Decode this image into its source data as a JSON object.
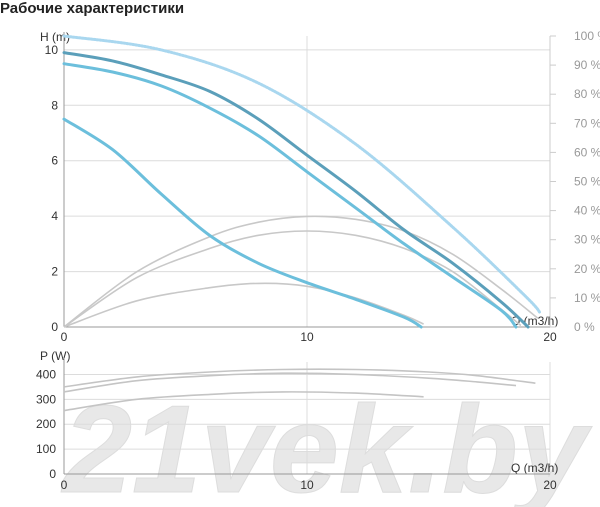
{
  "title": "Рабочие характеристики",
  "watermark": "21vek.by",
  "colors": {
    "dark_curve": "#5b9fba",
    "light_curve": "#6cbfdc",
    "dotted_curve": "#a9d7ef",
    "eff_curve": "#c8c8c8",
    "power_curve": "#c4c4c4",
    "grid": "#dcdcdc",
    "axis_text": "#333333",
    "right_axis_text": "#999999",
    "watermark": "#e8e8e8"
  },
  "chart_data": [
    {
      "type": "line",
      "ylabel": "H (m)",
      "xlabel": "Q (m3/h)",
      "xlim": [
        0,
        20
      ],
      "ylim": [
        0,
        10.5
      ],
      "x_ticks": [
        "0",
        "10",
        "20"
      ],
      "y_ticks": [
        "0",
        "2",
        "4",
        "6",
        "8",
        "10"
      ],
      "y_right_lim": [
        0,
        100
      ],
      "y_right_ticks": [
        "0 %",
        "10 %",
        "20 %",
        "30 %",
        "40 %",
        "50 %",
        "60 %",
        "70 %",
        "80 %",
        "90 %",
        "100 %"
      ],
      "grid": true,
      "head_curves": [
        {
          "style": "dark",
          "points": [
            [
              0,
              9.9
            ],
            [
              2,
              9.6
            ],
            [
              4,
              9.1
            ],
            [
              6,
              8.5
            ],
            [
              8,
              7.5
            ],
            [
              10,
              6.2
            ],
            [
              12,
              4.9
            ],
            [
              14,
              3.5
            ],
            [
              16,
              2.3
            ],
            [
              18,
              0.9
            ],
            [
              19.1,
              0
            ]
          ]
        },
        {
          "style": "light",
          "points": [
            [
              0,
              9.5
            ],
            [
              2,
              9.2
            ],
            [
              4,
              8.7
            ],
            [
              6,
              7.9
            ],
            [
              8,
              6.9
            ],
            [
              10,
              5.6
            ],
            [
              12,
              4.3
            ],
            [
              14,
              3.0
            ],
            [
              16,
              1.8
            ],
            [
              18,
              0.6
            ],
            [
              18.6,
              0
            ]
          ]
        },
        {
          "style": "light",
          "points": [
            [
              0,
              7.5
            ],
            [
              2,
              6.4
            ],
            [
              4,
              4.8
            ],
            [
              6,
              3.3
            ],
            [
              8,
              2.3
            ],
            [
              10,
              1.6
            ],
            [
              12,
              1.0
            ],
            [
              14,
              0.35
            ],
            [
              14.7,
              0
            ]
          ]
        },
        {
          "style": "dotted",
          "points": [
            [
              0,
              10.5
            ],
            [
              4,
              10.0
            ],
            [
              8,
              8.8
            ],
            [
              12,
              6.6
            ],
            [
              16,
              3.6
            ],
            [
              19,
              1.1
            ],
            [
              19.6,
              0.5
            ]
          ]
        }
      ],
      "efficiency_curves": [
        {
          "points": [
            [
              0,
              0
            ],
            [
              3,
              19
            ],
            [
              6,
              31
            ],
            [
              8,
              36
            ],
            [
              10,
              38
            ],
            [
              12,
              37
            ],
            [
              14,
              33
            ],
            [
              16,
              25
            ],
            [
              18,
              13
            ],
            [
              19.5,
              3
            ]
          ]
        },
        {
          "points": [
            [
              0,
              0
            ],
            [
              3,
              17
            ],
            [
              6,
              27
            ],
            [
              8,
              31.5
            ],
            [
              10,
              33
            ],
            [
              12,
              31.5
            ],
            [
              14,
              27
            ],
            [
              16,
              19
            ],
            [
              18,
              6
            ],
            [
              18.8,
              0.5
            ]
          ]
        },
        {
          "points": [
            [
              0,
              0
            ],
            [
              3,
              9
            ],
            [
              6,
              13.5
            ],
            [
              8,
              15
            ],
            [
              10,
              14
            ],
            [
              12,
              10
            ],
            [
              14,
              4
            ],
            [
              14.8,
              1
            ]
          ]
        }
      ]
    },
    {
      "type": "line",
      "ylabel": "P (W)",
      "xlabel": "Q (m3/h)",
      "xlim": [
        0,
        20
      ],
      "ylim": [
        0,
        450
      ],
      "x_ticks": [
        "0",
        "10",
        "20"
      ],
      "y_ticks": [
        "0",
        "100",
        "200",
        "300",
        "400"
      ],
      "grid": true,
      "power_curves": [
        {
          "points": [
            [
              0,
              350
            ],
            [
              3,
              390
            ],
            [
              6,
              410
            ],
            [
              9,
              420
            ],
            [
              12,
              420
            ],
            [
              15,
              410
            ],
            [
              17,
              395
            ],
            [
              19.4,
              365
            ]
          ]
        },
        {
          "points": [
            [
              0,
              330
            ],
            [
              3,
              375
            ],
            [
              6,
              395
            ],
            [
              9,
              405
            ],
            [
              12,
              400
            ],
            [
              15,
              385
            ],
            [
              17,
              370
            ],
            [
              18.6,
              355
            ]
          ]
        },
        {
          "points": [
            [
              0,
              255
            ],
            [
              3,
              300
            ],
            [
              6,
              320
            ],
            [
              9,
              330
            ],
            [
              12,
              325
            ],
            [
              14.8,
              310
            ]
          ]
        }
      ]
    }
  ]
}
